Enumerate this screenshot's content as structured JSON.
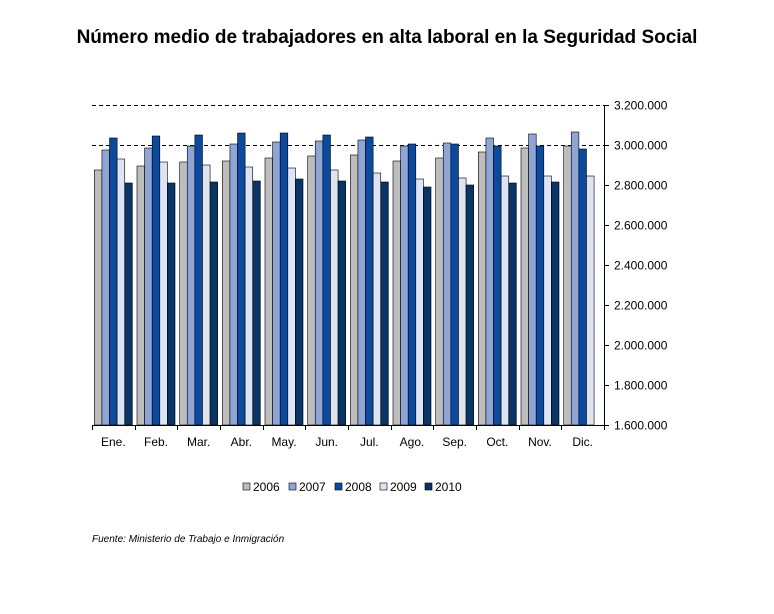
{
  "chart_data": {
    "type": "bar",
    "title": "Número medio de trabajadores en alta laboral en la Seguridad Social",
    "xlabel": "",
    "ylabel": "",
    "categories": [
      "Ene.",
      "Feb.",
      "Mar.",
      "Abr.",
      "May.",
      "Jun.",
      "Jul.",
      "Ago.",
      "Sep.",
      "Oct.",
      "Nov.",
      "Dic."
    ],
    "ylim": [
      1600000,
      3200000
    ],
    "yticks": [
      1600000,
      1800000,
      2000000,
      2200000,
      2400000,
      2600000,
      2800000,
      3000000,
      3200000
    ],
    "ytick_labels": [
      "1.600.000",
      "1.800.000",
      "2.000.000",
      "2.200.000",
      "2.400.000",
      "2.600.000",
      "2.800.000",
      "3.000.000",
      "3.200.000"
    ],
    "y_axis_side": "right",
    "grid": "dashed at 3.000.000 and 3.200.000",
    "legend_position": "bottom",
    "series": [
      {
        "name": "2006",
        "color": "#bdbdbd",
        "values": [
          2875000,
          2895000,
          2915000,
          2920000,
          2935000,
          2945000,
          2950000,
          2920000,
          2935000,
          2965000,
          2985000,
          2995000
        ]
      },
      {
        "name": "2007",
        "color": "#8fa5d8",
        "values": [
          2975000,
          2985000,
          2995000,
          3005000,
          3015000,
          3020000,
          3025000,
          2995000,
          3010000,
          3035000,
          3055000,
          3065000
        ]
      },
      {
        "name": "2008",
        "color": "#0c4a9e",
        "values": [
          3035000,
          3045000,
          3050000,
          3060000,
          3060000,
          3050000,
          3040000,
          3005000,
          3005000,
          2995000,
          2995000,
          2980000
        ]
      },
      {
        "name": "2009",
        "color": "#dde4f4",
        "values": [
          2930000,
          2915000,
          2900000,
          2890000,
          2885000,
          2875000,
          2860000,
          2830000,
          2835000,
          2845000,
          2845000,
          2845000
        ]
      },
      {
        "name": "2010",
        "color": "#0a3366",
        "values": [
          2810000,
          2810000,
          2815000,
          2820000,
          2830000,
          2820000,
          2815000,
          2790000,
          2800000,
          2810000,
          2815000,
          null
        ]
      }
    ]
  },
  "source_note": "Fuente: Ministerio de Trabajo e Inmigración"
}
